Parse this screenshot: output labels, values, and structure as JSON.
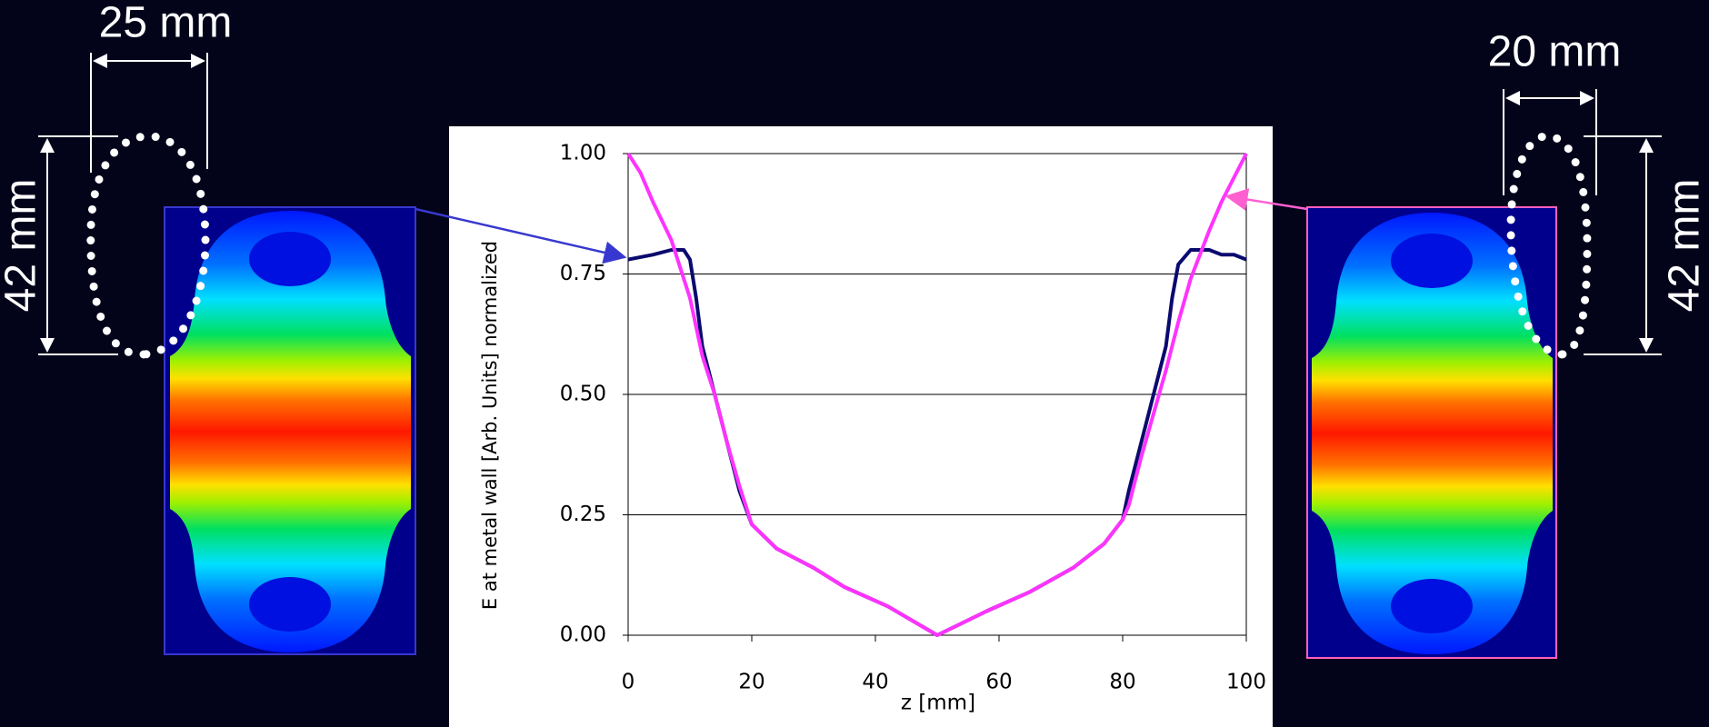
{
  "chart_data": {
    "type": "line",
    "x_label": "z [mm]",
    "y_label": "E at metal wall [Arb. Units] normalized",
    "annotations": [
      "25 mm",
      "42 mm",
      "20 mm",
      "42 mm"
    ],
    "x": [
      0,
      2,
      4,
      7,
      9,
      10,
      11,
      12,
      14,
      16,
      18,
      20,
      24,
      30,
      35,
      42,
      50,
      58,
      65,
      72,
      77,
      80,
      81,
      83,
      85,
      87,
      88,
      89,
      91,
      94,
      96,
      98,
      100
    ],
    "series": [
      {
        "color": "#0a0a6e",
        "values": [
          0.78,
          0.785,
          0.79,
          0.8,
          0.8,
          0.78,
          0.7,
          0.6,
          0.5,
          0.4,
          0.3,
          0.23,
          0.18,
          0.14,
          0.1,
          0.06,
          0.0,
          0.05,
          0.09,
          0.14,
          0.19,
          0.24,
          0.3,
          0.4,
          0.5,
          0.6,
          0.7,
          0.77,
          0.8,
          0.8,
          0.79,
          0.79,
          0.78
        ]
      },
      {
        "color": "#ff33ff",
        "values": [
          1.0,
          0.96,
          0.9,
          0.82,
          0.74,
          0.7,
          0.64,
          0.58,
          0.5,
          0.4,
          0.31,
          0.23,
          0.18,
          0.14,
          0.1,
          0.06,
          0.0,
          0.05,
          0.09,
          0.14,
          0.19,
          0.24,
          0.27,
          0.37,
          0.46,
          0.55,
          0.6,
          0.65,
          0.74,
          0.84,
          0.9,
          0.95,
          1.0
        ]
      }
    ],
    "xlim": [
      0,
      100
    ],
    "xticks": [
      0,
      20,
      40,
      60,
      80,
      100
    ],
    "ylim": [
      0,
      1
    ],
    "yticks": [
      {
        "value": 0,
        "label": "0.00"
      },
      {
        "value": 0.25,
        "label": "0.25"
      },
      {
        "value": 0.5,
        "label": "0.50"
      },
      {
        "value": 0.75,
        "label": "0.75"
      },
      {
        "value": 1,
        "label": "1.00"
      }
    ],
    "grid": true
  }
}
